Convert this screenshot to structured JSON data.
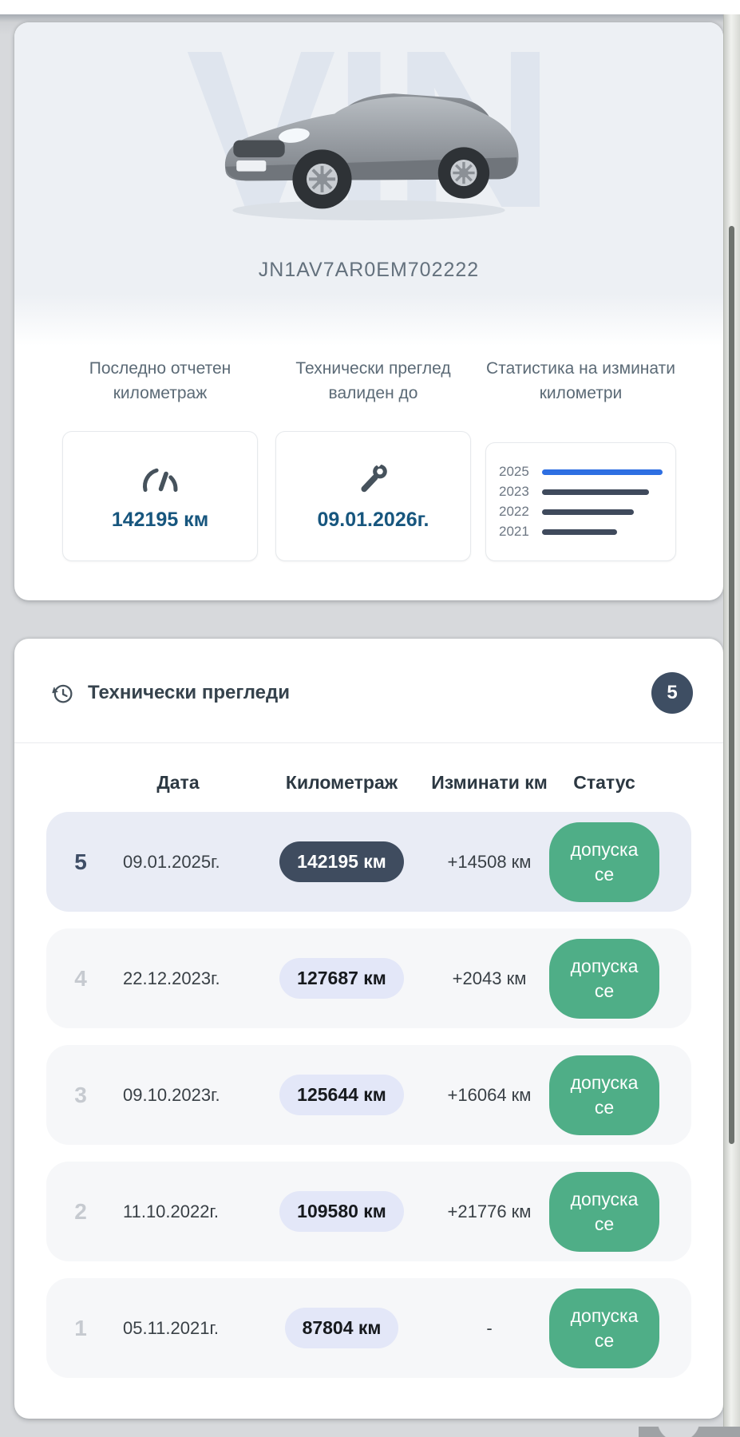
{
  "colors": {
    "accent_blue": "#2e6fe2",
    "dark_slate": "#3f4c5f",
    "status_green": "#4fae87",
    "value_blue": "#17567e",
    "highlight_row": "#e9ecf5"
  },
  "vehicle": {
    "watermark": "VIN",
    "vin": "JN1AV7AR0EM702222"
  },
  "stats": [
    {
      "label": "Последно отчетен километраж",
      "icon": "speedometer-icon",
      "value": "142195 км"
    },
    {
      "label": "Технически преглед валиден до",
      "icon": "wrench-icon",
      "value": "09.01.2026г."
    },
    {
      "label": "Статистика на изминати километри",
      "icon": "none",
      "value": ""
    }
  ],
  "chart_data": {
    "type": "bar",
    "orientation": "horizontal",
    "title": "Статистика на изминати километри",
    "categories": [
      "2025",
      "2023",
      "2022",
      "2021"
    ],
    "values_relative_pct": [
      100,
      89,
      76,
      62
    ],
    "bar_colors": [
      "#2e6fe2",
      "#3f4a5c",
      "#3f4a5c",
      "#3f4a5c"
    ],
    "xlabel": "",
    "ylabel": "",
    "grid": false,
    "legend": false,
    "numeric_labels_shown": false
  },
  "inspections": {
    "title": "Технически прегледи",
    "count": "5",
    "columns": [
      "Дата",
      "Километраж",
      "Изминати км",
      "Статус"
    ],
    "rows": [
      {
        "num": "5",
        "date": "09.01.2025г.",
        "km": "142195 км",
        "delta": "+14508 км",
        "status": "допуска се"
      },
      {
        "num": "4",
        "date": "22.12.2023г.",
        "km": "127687 км",
        "delta": "+2043 км",
        "status": "допуска се"
      },
      {
        "num": "3",
        "date": "09.10.2023г.",
        "km": "125644 км",
        "delta": "+16064 км",
        "status": "допуска се"
      },
      {
        "num": "2",
        "date": "11.10.2022г.",
        "km": "109580 км",
        "delta": "+21776 км",
        "status": "допуска се"
      },
      {
        "num": "1",
        "date": "05.11.2021г.",
        "km": "87804 км",
        "delta": "-",
        "status": "допуска се"
      }
    ]
  }
}
